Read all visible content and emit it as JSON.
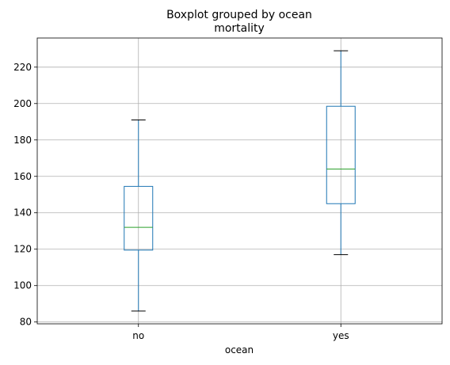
{
  "chart_data": {
    "type": "boxplot",
    "suptitle": "Boxplot grouped by ocean",
    "title": "mortality",
    "xlabel": "ocean",
    "ylabel": "",
    "categories": [
      "no",
      "yes"
    ],
    "boxes": [
      {
        "category": "no",
        "whisker_low": 86,
        "q1": 119.5,
        "median": 132,
        "q3": 154.5,
        "whisker_high": 191
      },
      {
        "category": "yes",
        "whisker_low": 117,
        "q1": 145,
        "median": 164,
        "q3": 198.5,
        "whisker_high": 229
      }
    ],
    "ylim": [
      79,
      236
    ],
    "yticks": [
      80,
      100,
      120,
      140,
      160,
      180,
      200,
      220
    ],
    "grid": true,
    "colors": {
      "box": "#1f77b4",
      "median": "#2ca02c",
      "whisker": "#1f77b4",
      "cap": "#000000",
      "grid": "#b0b0b0"
    }
  }
}
